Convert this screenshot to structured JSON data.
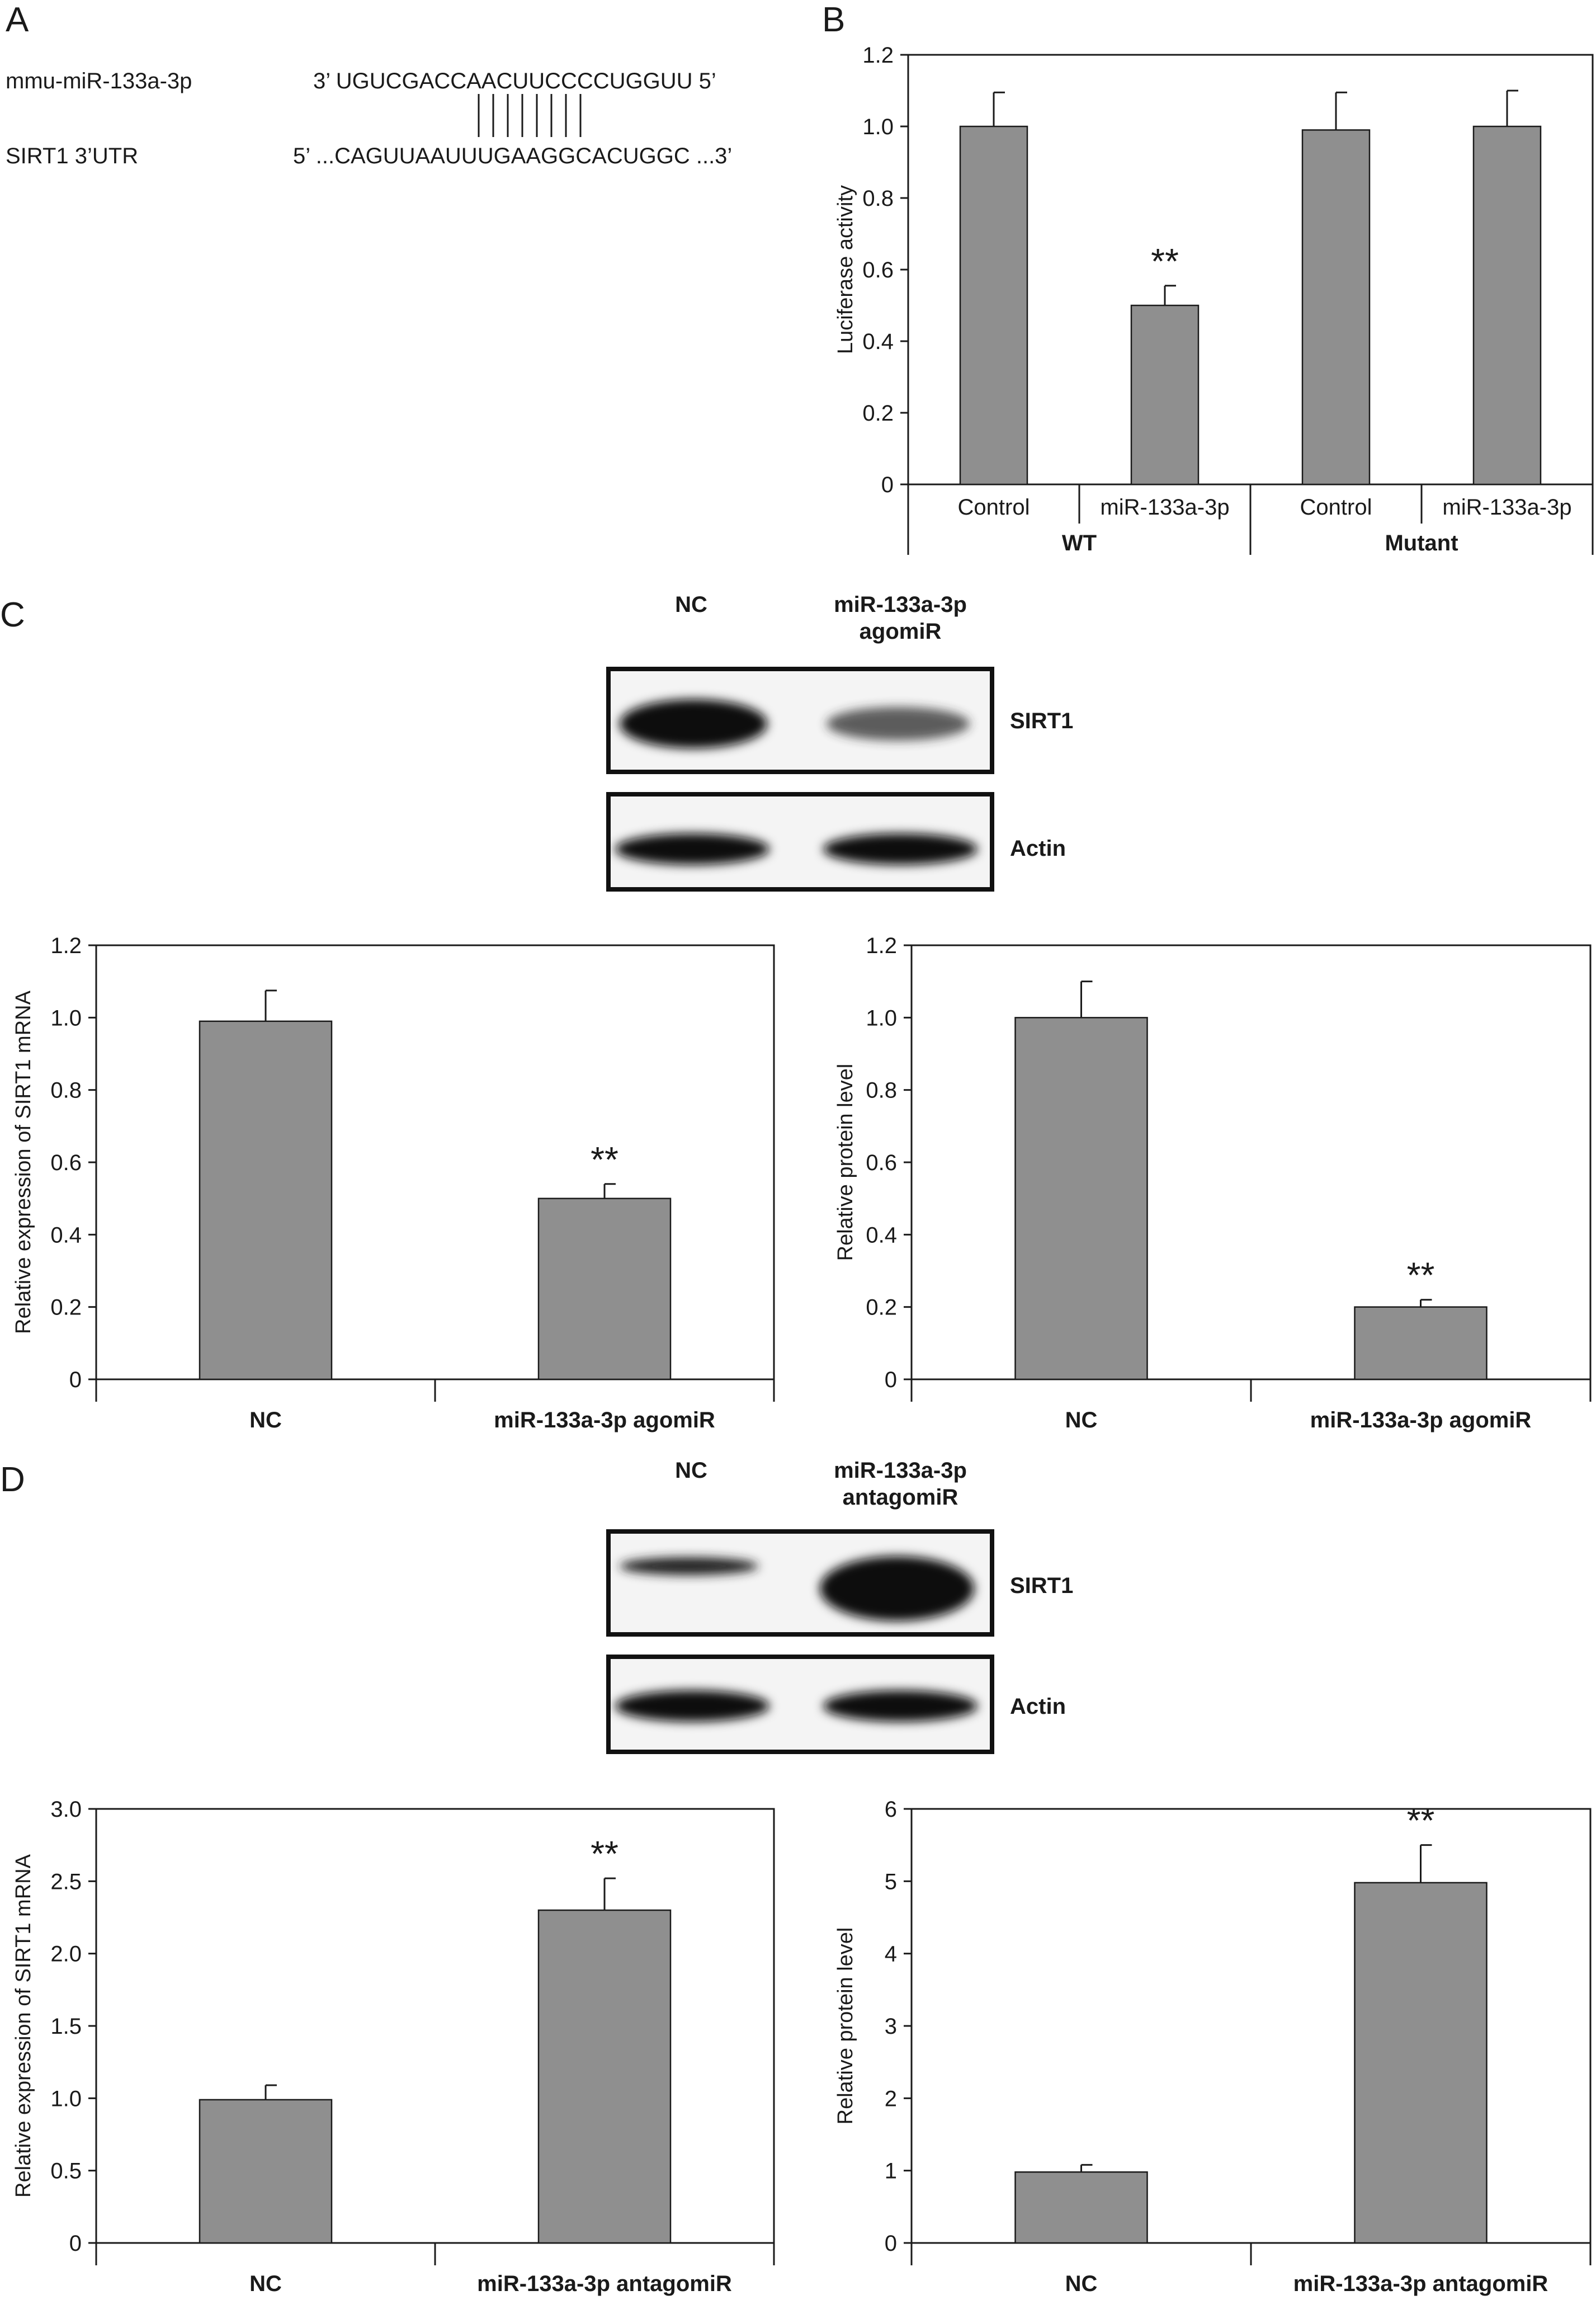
{
  "panel_labels": {
    "a": "A",
    "b": "B",
    "c": "C",
    "d": "D"
  },
  "panel_a": {
    "mirna_name": "mmu-miR-133a-3p",
    "mirna_seq": "3’ UGUCGACCAACUUCCCCUGGUU 5’",
    "target_name": "SIRT1 3’UTR",
    "target_seq": "5’ ...CAGUUAAUUUGAAGGCACUGGC ...3’"
  },
  "blot_c": {
    "lane_labels": [
      "NC",
      "miR-133a-3p",
      "agomiR"
    ],
    "band_labels": [
      "SIRT1",
      "Actin"
    ]
  },
  "blot_d": {
    "lane_labels": [
      "NC",
      "miR-133a-3p",
      "antagomiR"
    ],
    "band_labels": [
      "SIRT1",
      "Actin"
    ]
  },
  "chart_data": [
    {
      "id": "B",
      "type": "bar",
      "categories": [
        "Control",
        "miR-133a-3p",
        "Control",
        "miR-133a-3p"
      ],
      "groups": [
        "WT",
        "Mutant"
      ],
      "values": [
        1.0,
        0.5,
        0.99,
        1.0
      ],
      "errors": [
        0.095,
        0.055,
        0.105,
        0.1
      ],
      "significance": [
        "",
        "**",
        "",
        ""
      ],
      "ylabel": "Luciferase activity",
      "ylim": [
        0,
        1.2
      ],
      "yticks": [
        "0",
        "0.2",
        "0.4",
        "0.6",
        "0.8",
        "1.0",
        "1.2"
      ]
    },
    {
      "id": "C-mRNA",
      "type": "bar",
      "categories": [
        "NC",
        "miR-133a-3p agomiR"
      ],
      "values": [
        0.99,
        0.5
      ],
      "errors": [
        0.085,
        0.04
      ],
      "significance": [
        "",
        "**"
      ],
      "ylabel": "Relative expression of SIRT1 mRNA",
      "ylim": [
        0,
        1.2
      ],
      "yticks": [
        "0",
        "0.2",
        "0.4",
        "0.6",
        "0.8",
        "1.0",
        "1.2"
      ]
    },
    {
      "id": "C-protein",
      "type": "bar",
      "categories": [
        "NC",
        "miR-133a-3p agomiR"
      ],
      "values": [
        1.0,
        0.2
      ],
      "errors": [
        0.1,
        0.02
      ],
      "significance": [
        "",
        "**"
      ],
      "ylabel": "Relative protein level",
      "ylim": [
        0,
        1.2
      ],
      "yticks": [
        "0",
        "0.2",
        "0.4",
        "0.6",
        "0.8",
        "1.0",
        "1.2"
      ]
    },
    {
      "id": "D-mRNA",
      "type": "bar",
      "categories": [
        "NC",
        "miR-133a-3p antagomiR"
      ],
      "values": [
        0.99,
        2.3
      ],
      "errors": [
        0.1,
        0.22
      ],
      "significance": [
        "",
        "**"
      ],
      "ylabel": "Relative expression of SIRT1 mRNA",
      "ylim": [
        0,
        3.0
      ],
      "yticks": [
        "0",
        "0.5",
        "1.0",
        "1.5",
        "2.0",
        "2.5",
        "3.0"
      ]
    },
    {
      "id": "D-protein",
      "type": "bar",
      "categories": [
        "NC",
        "miR-133a-3p antagomiR"
      ],
      "values": [
        0.98,
        4.98
      ],
      "errors": [
        0.1,
        0.52
      ],
      "significance": [
        "",
        "**"
      ],
      "ylabel": "Relative protein level",
      "ylim": [
        0,
        6
      ],
      "yticks": [
        "0",
        "1",
        "2",
        "3",
        "4",
        "5",
        "6"
      ]
    }
  ]
}
